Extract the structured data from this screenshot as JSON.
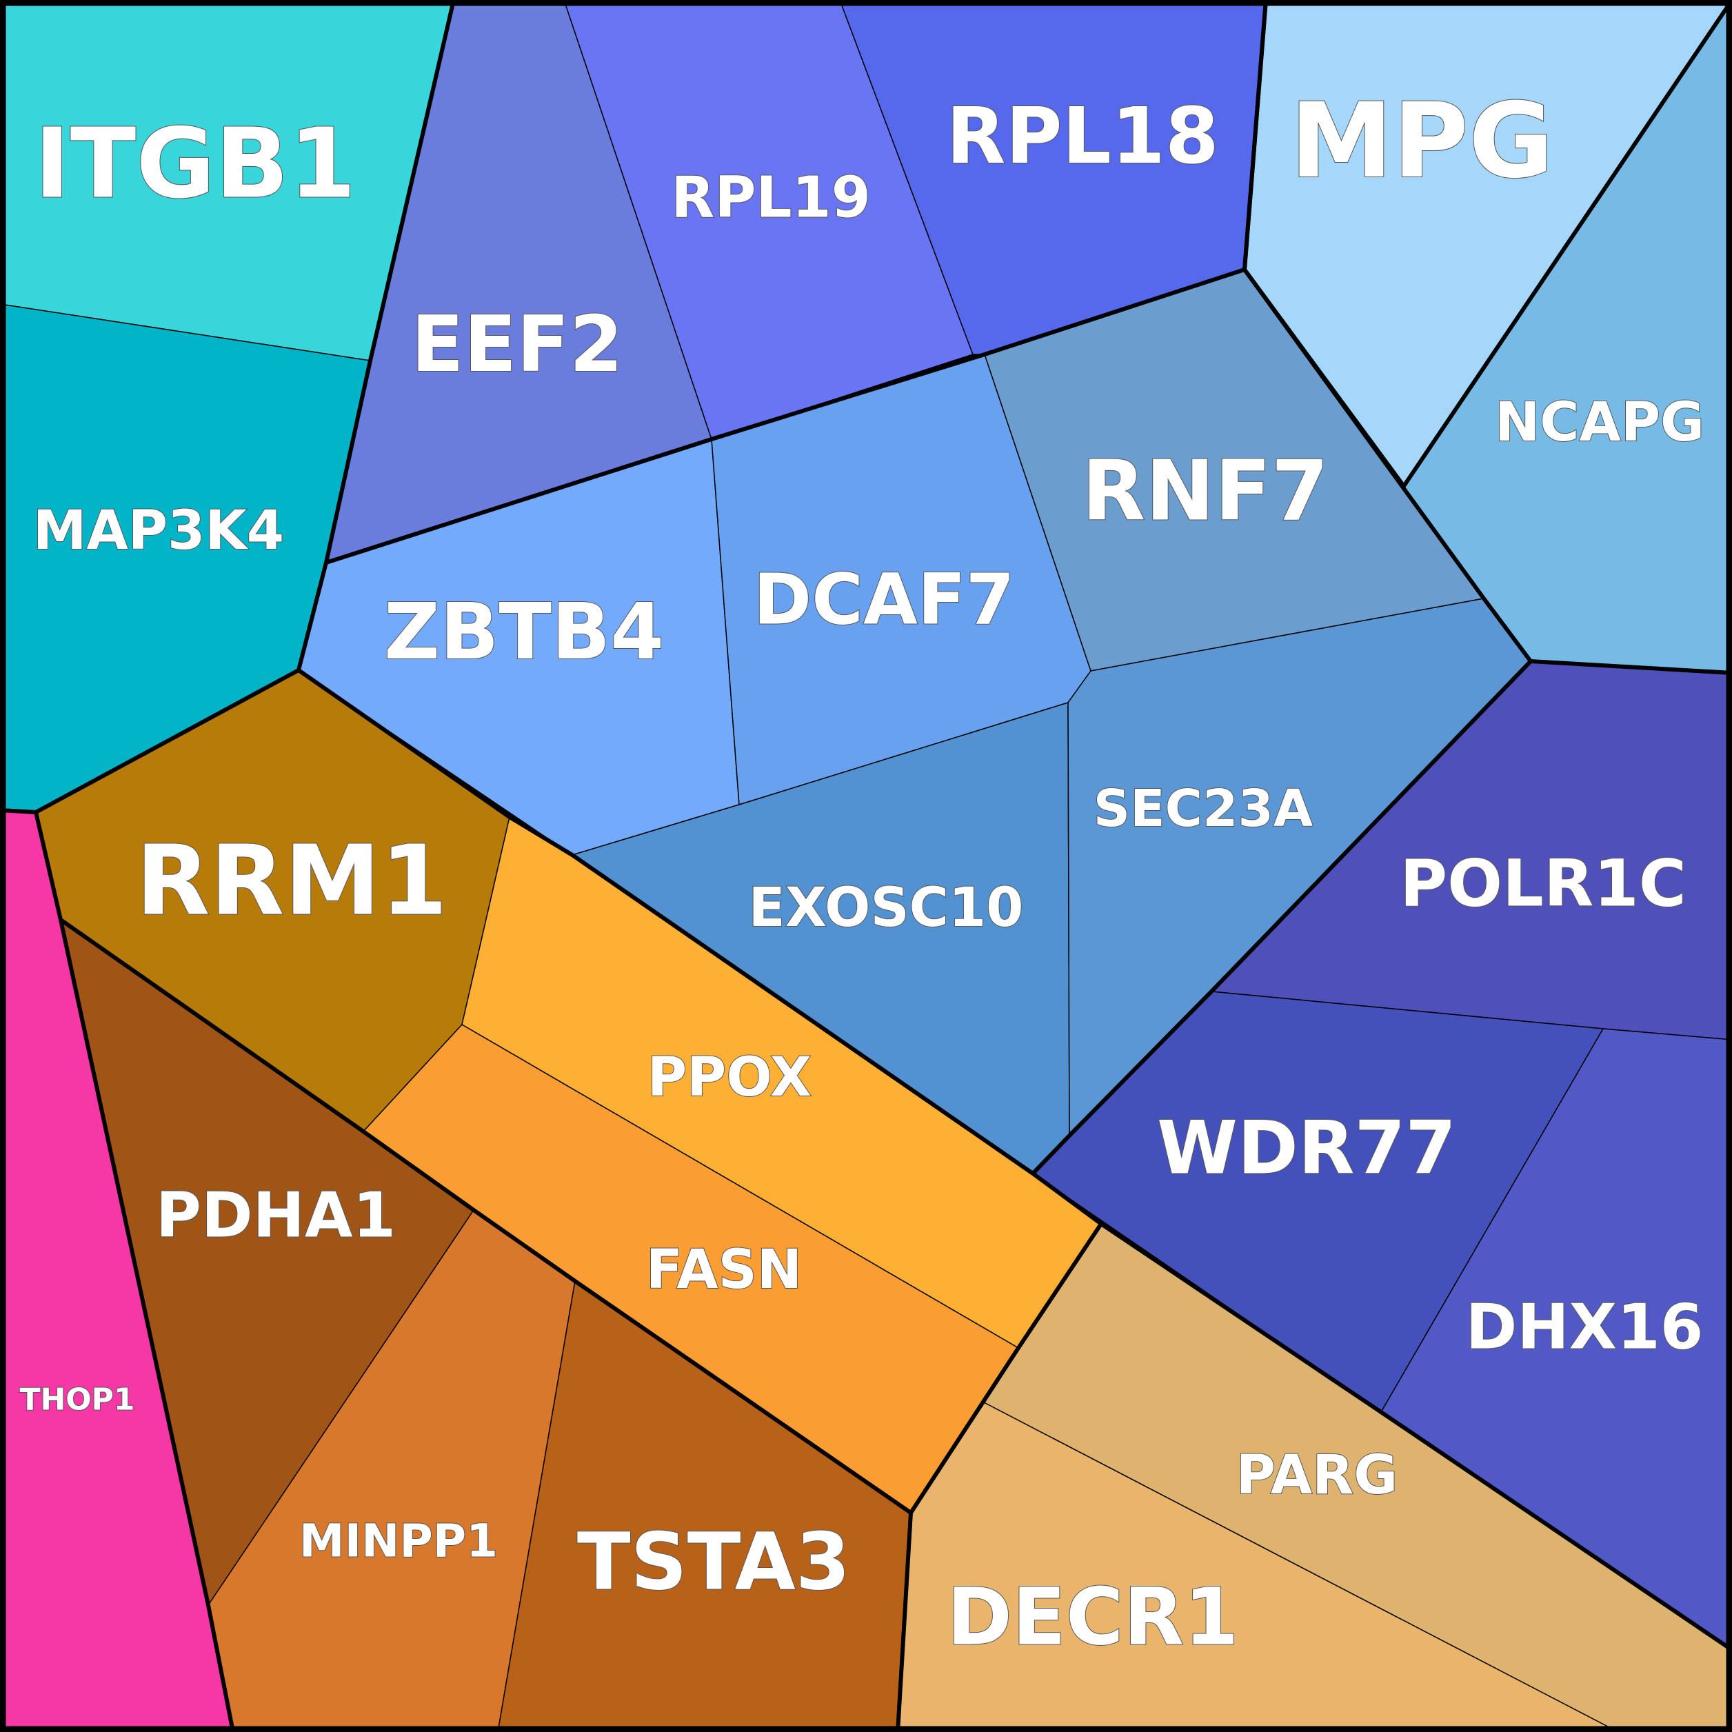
{
  "chart_data": {
    "type": "voronoi-treemap",
    "title": "",
    "cells": [
      {
        "label": "ITGB1",
        "color": "#38d5db",
        "group": "cyan"
      },
      {
        "label": "MAP3K4",
        "color": "#02b4c8",
        "group": "cyan"
      },
      {
        "label": "EEF2",
        "color": "#6a7cdc",
        "group": "blue"
      },
      {
        "label": "RPL19",
        "color": "#6975f3",
        "group": "blue"
      },
      {
        "label": "RPL18",
        "color": "#5669ec",
        "group": "blue"
      },
      {
        "label": "MPG",
        "color": "#a5d7fb",
        "group": "lightblue"
      },
      {
        "label": "NCAPG",
        "color": "#76bbe5",
        "group": "lightblue"
      },
      {
        "label": "ZBTB4",
        "color": "#74aafb",
        "group": "blue"
      },
      {
        "label": "DCAF7",
        "color": "#67a1ef",
        "group": "blue"
      },
      {
        "label": "RNF7",
        "color": "#6b9ecf",
        "group": "blue"
      },
      {
        "label": "EXOSC10",
        "color": "#5392d0",
        "group": "blue"
      },
      {
        "label": "SEC23A",
        "color": "#5c97d5",
        "group": "blue"
      },
      {
        "label": "POLR1C",
        "color": "#5050bb",
        "group": "indigo"
      },
      {
        "label": "WDR77",
        "color": "#4551bb",
        "group": "indigo"
      },
      {
        "label": "DHX16",
        "color": "#5059c5",
        "group": "indigo"
      },
      {
        "label": "RRM1",
        "color": "#b77b0a",
        "group": "orange"
      },
      {
        "label": "PDHA1",
        "color": "#a05516",
        "group": "orange"
      },
      {
        "label": "PPOX",
        "color": "#feb034",
        "group": "orange"
      },
      {
        "label": "FASN",
        "color": "#fa9d32",
        "group": "orange"
      },
      {
        "label": "MINPP1",
        "color": "#d8782c",
        "group": "orange"
      },
      {
        "label": "TSTA3",
        "color": "#b86119",
        "group": "orange"
      },
      {
        "label": "PARG",
        "color": "#deb36f",
        "group": "tan"
      },
      {
        "label": "DECR1",
        "color": "#e9b56d",
        "group": "tan"
      },
      {
        "label": "THOP1",
        "color": "#f637a6",
        "group": "pink"
      }
    ]
  }
}
